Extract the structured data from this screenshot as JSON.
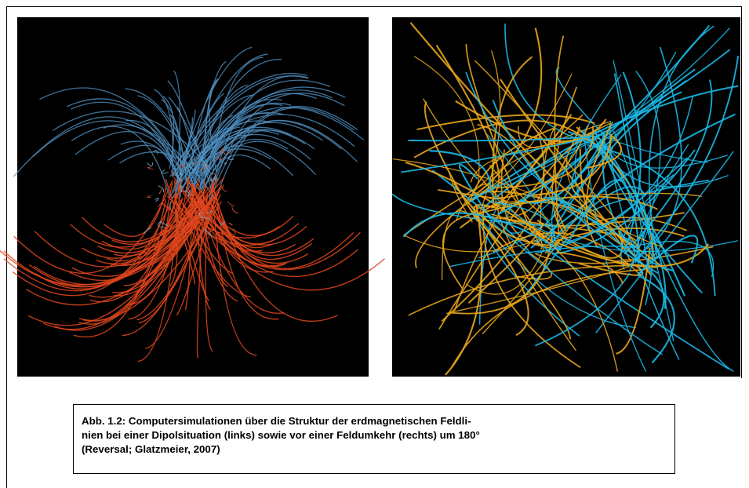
{
  "figure": {
    "caption_lines": [
      "Abb. 1.2: Computersimulationen über die Struktur der erdmagnetischen Feldli-",
      "nien bei einer Dipolsituation (links) sowie vor einer Feldumkehr (rechts) um 180°",
      "(Reversal; Glatzmeier, 2007)"
    ]
  }
}
